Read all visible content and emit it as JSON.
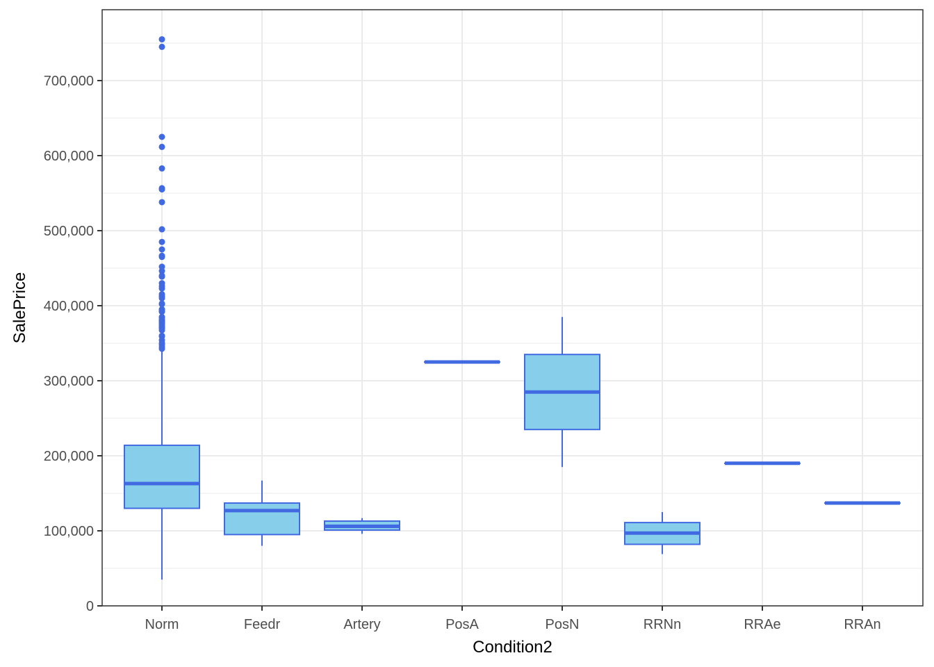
{
  "chart_data": {
    "type": "boxplot",
    "title": "",
    "xlabel": "Condition2",
    "ylabel": "SalePrice",
    "ylim": [
      0,
      790000
    ],
    "yticks": [
      0,
      100000,
      200000,
      300000,
      400000,
      500000,
      600000,
      700000
    ],
    "ytick_labels": [
      "0",
      "100,000",
      "200,000",
      "300,000",
      "400,000",
      "500,000",
      "600,000",
      "700,000"
    ],
    "categories": [
      "Norm",
      "Feedr",
      "Artery",
      "PosA",
      "PosN",
      "RRNn",
      "RRAe",
      "RRAn"
    ],
    "grid": true,
    "legend": "none",
    "colors": {
      "fill": "#87ceeb",
      "stroke": "#4169e1",
      "grid": "#ebebeb",
      "axis": "#333333"
    },
    "boxes": [
      {
        "category": "Norm",
        "whisker_low": 35000,
        "q1": 130000,
        "median": 163000,
        "q3": 214000,
        "whisker_high": 340000,
        "outliers": [
          755000,
          745000,
          625000,
          611657,
          582933,
          556581,
          555000,
          538000,
          501837,
          485000,
          475000,
          466500,
          465000,
          451950,
          446261,
          440000,
          438780,
          430000,
          426000,
          423000,
          415298,
          412500,
          410000,
          402861,
          402000,
          395192,
          394617,
          392500,
          392000,
          385000,
          383970,
          381000,
          380000,
          378500,
          377500,
          377426,
          375000,
          372500,
          372402,
          370878,
          369900,
          367294,
          360000,
          359100,
          354000,
          350000,
          348000,
          345000,
          342643
        ]
      },
      {
        "category": "Feedr",
        "whisker_low": 80000,
        "q1": 95000,
        "median": 127000,
        "q3": 137000,
        "whisker_high": 167000,
        "outliers": []
      },
      {
        "category": "Artery",
        "whisker_low": 96000,
        "q1": 101000,
        "median": 106000,
        "q3": 113000,
        "whisker_high": 117000,
        "outliers": []
      },
      {
        "category": "PosA",
        "whisker_low": 325000,
        "q1": 325000,
        "median": 325000,
        "q3": 325000,
        "whisker_high": 325000,
        "outliers": []
      },
      {
        "category": "PosN",
        "whisker_low": 185000,
        "q1": 235000,
        "median": 285000,
        "q3": 335000,
        "whisker_high": 385000,
        "outliers": []
      },
      {
        "category": "RRNn",
        "whisker_low": 69000,
        "q1": 82000,
        "median": 97000,
        "q3": 111000,
        "whisker_high": 125000,
        "outliers": []
      },
      {
        "category": "RRAe",
        "whisker_low": 190000,
        "q1": 190000,
        "median": 190000,
        "q3": 190000,
        "whisker_high": 190000,
        "outliers": []
      },
      {
        "category": "RRAn",
        "whisker_low": 137000,
        "q1": 137000,
        "median": 137000,
        "q3": 137000,
        "whisker_high": 137000,
        "outliers": []
      }
    ]
  }
}
